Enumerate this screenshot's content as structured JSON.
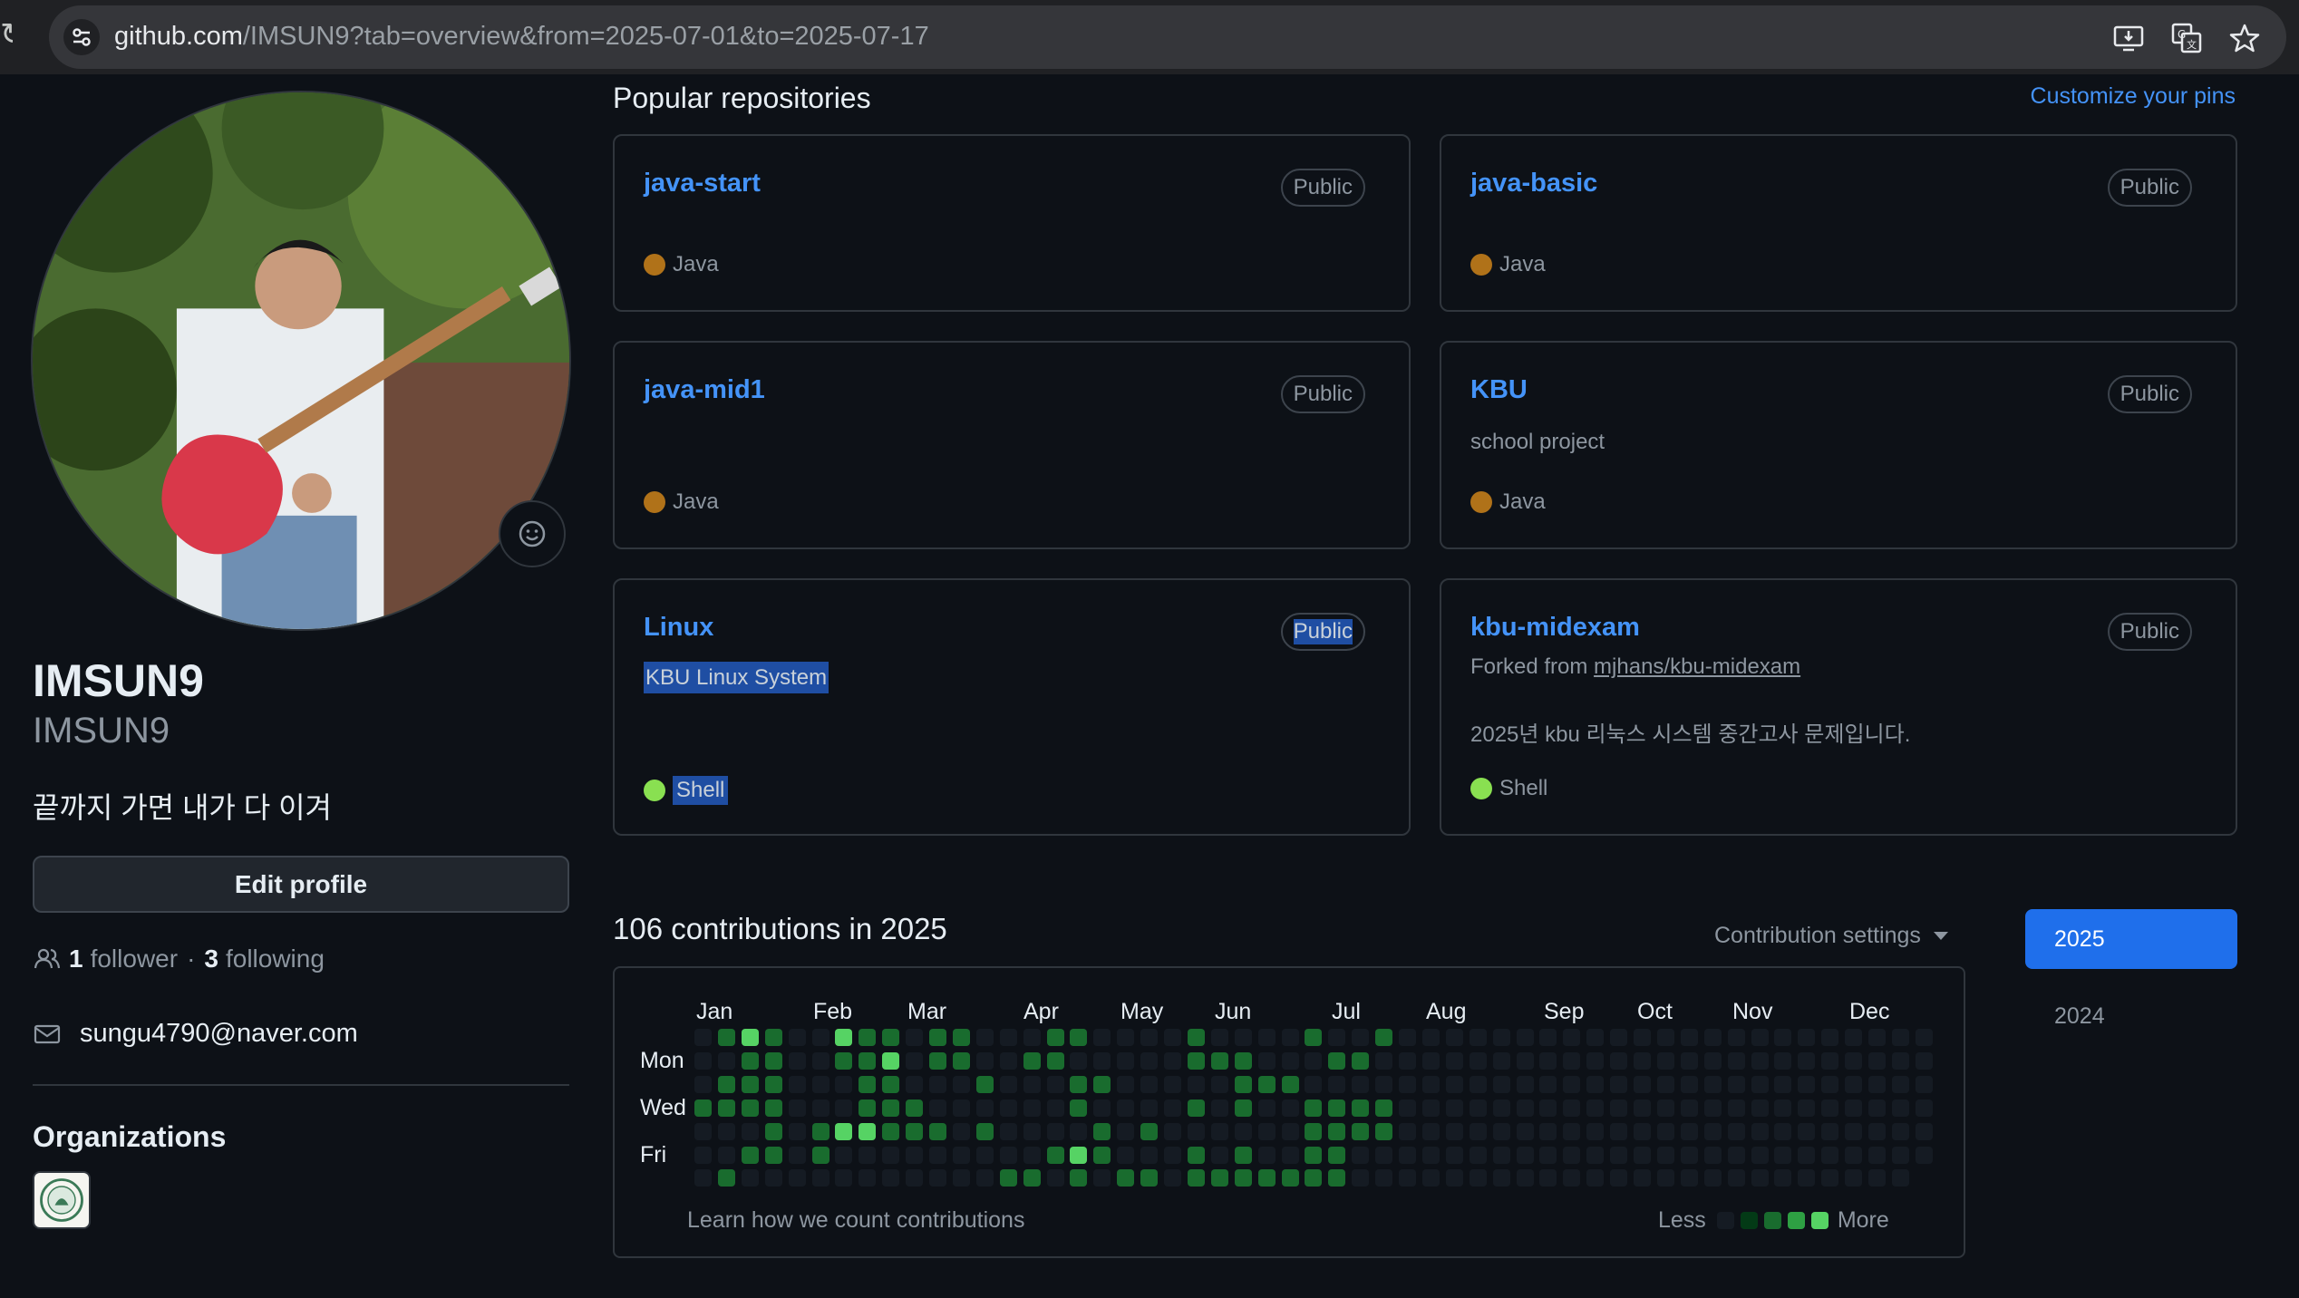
{
  "browser": {
    "url_host": "github.com",
    "url_path": "/IMSUN9?tab=overview&from=2025-07-01&to=2025-07-17",
    "icons": [
      "reload-icon",
      "site-info-icon",
      "install-app-icon",
      "translate-icon",
      "bookmark-star-icon"
    ]
  },
  "profile": {
    "name": "IMSUN9",
    "login": "IMSUN9",
    "bio": "끝까지 가면 내가 다 이겨",
    "edit_label": "Edit profile",
    "followers_count": "1",
    "followers_label": "follower",
    "separator": "·",
    "following_count": "3",
    "following_label": "following",
    "email": "sungu4790@naver.com",
    "organizations_title": "Organizations"
  },
  "pinned": {
    "title": "Popular repositories",
    "customize_label": "Customize your pins",
    "repos": [
      {
        "name": "java-start",
        "visibility": "Public",
        "language": "Java",
        "lang_color": "#b07219"
      },
      {
        "name": "java-basic",
        "visibility": "Public",
        "language": "Java",
        "lang_color": "#b07219"
      },
      {
        "name": "java-mid1",
        "visibility": "Public",
        "language": "Java",
        "lang_color": "#b07219"
      },
      {
        "name": "KBU",
        "visibility": "Public",
        "description": "school project",
        "language": "Java",
        "lang_color": "#b07219"
      },
      {
        "name": "Linux",
        "visibility": "Public",
        "description": "KBU Linux System",
        "language": "Shell",
        "lang_color": "#89e051"
      },
      {
        "name": "kbu-midexam",
        "visibility": "Public",
        "forked_prefix": "Forked from",
        "forked_from": "mjhans/kbu-midexam",
        "description": "2025년 kbu 리눅스 시스템 중간고사 문제입니다.",
        "language": "Shell",
        "lang_color": "#89e051"
      }
    ]
  },
  "contributions": {
    "title": "106 contributions in 2025",
    "settings_label": "Contribution settings",
    "years": [
      "2025",
      "2024"
    ],
    "months": [
      "Jan",
      "Feb",
      "Mar",
      "Apr",
      "May",
      "Jun",
      "Jul",
      "Aug",
      "Sep",
      "Oct",
      "Nov",
      "Dec"
    ],
    "days": [
      "Mon",
      "Wed",
      "Fri"
    ],
    "learn_label": "Learn how we count contributions",
    "legend_less": "Less",
    "legend_more": "More",
    "level_colors": [
      "#151b23",
      "#033a16",
      "#196c2e",
      "#2ea043",
      "#56d364"
    ],
    "weeks": [
      [
        0,
        0,
        0,
        2,
        0,
        0,
        0
      ],
      [
        2,
        0,
        2,
        2,
        0,
        0,
        2
      ],
      [
        4,
        2,
        2,
        2,
        0,
        2,
        0
      ],
      [
        2,
        2,
        2,
        2,
        2,
        2,
        0
      ],
      [
        0,
        0,
        0,
        0,
        0,
        0,
        0
      ],
      [
        0,
        0,
        0,
        0,
        2,
        2,
        0
      ],
      [
        4,
        2,
        0,
        0,
        4,
        0,
        0
      ],
      [
        2,
        2,
        2,
        2,
        4,
        0,
        0
      ],
      [
        2,
        4,
        2,
        2,
        2,
        0,
        0
      ],
      [
        0,
        0,
        0,
        2,
        2,
        0,
        0
      ],
      [
        2,
        2,
        0,
        0,
        2,
        0,
        0
      ],
      [
        2,
        2,
        0,
        0,
        0,
        0,
        0
      ],
      [
        0,
        0,
        2,
        0,
        2,
        0,
        0
      ],
      [
        0,
        0,
        0,
        0,
        0,
        0,
        2
      ],
      [
        0,
        2,
        0,
        0,
        0,
        0,
        2
      ],
      [
        2,
        2,
        0,
        0,
        0,
        2,
        0
      ],
      [
        2,
        0,
        2,
        2,
        0,
        4,
        2
      ],
      [
        0,
        0,
        2,
        0,
        2,
        2,
        0
      ],
      [
        0,
        0,
        0,
        0,
        0,
        0,
        2
      ],
      [
        0,
        0,
        0,
        0,
        2,
        0,
        2
      ],
      [
        0,
        0,
        0,
        0,
        0,
        0,
        0
      ],
      [
        2,
        2,
        0,
        2,
        0,
        2,
        2
      ],
      [
        0,
        2,
        0,
        0,
        0,
        0,
        2
      ],
      [
        0,
        2,
        2,
        2,
        0,
        2,
        2
      ],
      [
        0,
        0,
        2,
        0,
        0,
        0,
        2
      ],
      [
        0,
        0,
        2,
        0,
        0,
        0,
        2
      ],
      [
        2,
        0,
        0,
        2,
        2,
        2,
        2
      ],
      [
        0,
        2,
        0,
        2,
        2,
        2,
        2
      ],
      [
        0,
        2,
        0,
        2,
        2,
        0,
        0
      ],
      [
        2,
        0,
        0,
        2,
        2,
        0,
        0
      ],
      [
        0,
        0,
        0,
        0,
        0,
        0,
        0
      ],
      [
        0,
        0,
        0,
        0,
        0,
        0,
        0
      ],
      [
        0,
        0,
        0,
        0,
        0,
        0,
        0
      ],
      [
        0,
        0,
        0,
        0,
        0,
        0,
        0
      ],
      [
        0,
        0,
        0,
        0,
        0,
        0,
        0
      ],
      [
        0,
        0,
        0,
        0,
        0,
        0,
        0
      ],
      [
        0,
        0,
        0,
        0,
        0,
        0,
        0
      ],
      [
        0,
        0,
        0,
        0,
        0,
        0,
        0
      ],
      [
        0,
        0,
        0,
        0,
        0,
        0,
        0
      ],
      [
        0,
        0,
        0,
        0,
        0,
        0,
        0
      ],
      [
        0,
        0,
        0,
        0,
        0,
        0,
        0
      ],
      [
        0,
        0,
        0,
        0,
        0,
        0,
        0
      ],
      [
        0,
        0,
        0,
        0,
        0,
        0,
        0
      ],
      [
        0,
        0,
        0,
        0,
        0,
        0,
        0
      ],
      [
        0,
        0,
        0,
        0,
        0,
        0,
        0
      ],
      [
        0,
        0,
        0,
        0,
        0,
        0,
        0
      ],
      [
        0,
        0,
        0,
        0,
        0,
        0,
        0
      ],
      [
        0,
        0,
        0,
        0,
        0,
        0,
        0
      ],
      [
        0,
        0,
        0,
        0,
        0,
        0,
        0
      ],
      [
        0,
        0,
        0,
        0,
        0,
        0,
        0
      ],
      [
        0,
        0,
        0,
        0,
        0,
        0,
        0
      ],
      [
        0,
        0,
        0,
        0,
        0,
        0,
        0
      ],
      [
        0,
        0,
        0,
        0,
        0,
        0,
        -1
      ]
    ]
  }
}
